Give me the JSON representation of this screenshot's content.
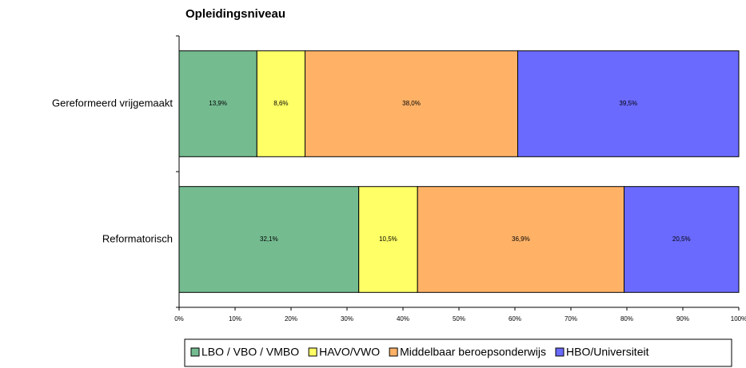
{
  "chart_data": {
    "type": "stacked_bar_horizontal",
    "title": "Opleidingsniveau",
    "categories": [
      "Gereformeerd vrijgemaakt",
      "Reformatorisch"
    ],
    "series": [
      {
        "name": "LBO / VBO / VMBO",
        "color": "#74bb90",
        "values": [
          13.9,
          32.1
        ],
        "value_labels": [
          "13,9%",
          "32,1%"
        ]
      },
      {
        "name": "HAVO/VWO",
        "color": "#ffff66",
        "values": [
          8.6,
          10.5
        ],
        "value_labels": [
          "8,6%",
          "10,5%"
        ]
      },
      {
        "name": "Middelbaar beroepsonderwijs",
        "color": "#ffb266",
        "values": [
          38.0,
          36.9
        ],
        "value_labels": [
          "38,0%",
          "36,9%"
        ]
      },
      {
        "name": "HBO/Universiteit",
        "color": "#6a6aff",
        "values": [
          39.5,
          20.5
        ],
        "value_labels": [
          "39,5%",
          "20,5%"
        ]
      }
    ],
    "xlim": [
      0,
      100
    ],
    "xticks": [
      {
        "value": 0,
        "label": "0%"
      },
      {
        "value": 10,
        "label": "10%"
      },
      {
        "value": 20,
        "label": "20%"
      },
      {
        "value": 30,
        "label": "30%"
      },
      {
        "value": 40,
        "label": "40%"
      },
      {
        "value": 50,
        "label": "50%"
      },
      {
        "value": 60,
        "label": "60%"
      },
      {
        "value": 70,
        "label": "70%"
      },
      {
        "value": 80,
        "label": "80%"
      },
      {
        "value": 90,
        "label": "90%"
      },
      {
        "value": 100,
        "label": "100%"
      }
    ],
    "legend": "bottom"
  }
}
